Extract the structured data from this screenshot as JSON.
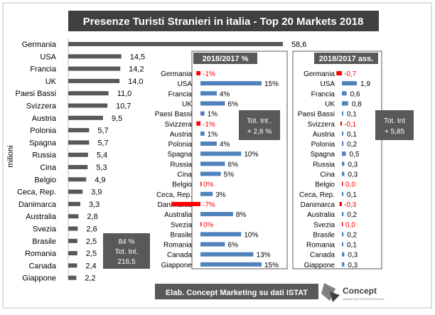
{
  "title": "Presenze Turisti Stranieri in italia -  Top 20 Markets 2018",
  "footer": "Elab. Concept Marketing su dati ISTAT",
  "logo": {
    "name": "Concept",
    "tagline": "MARKETING PROFESSIONALE"
  },
  "colors": {
    "bar_dark": "#595959",
    "bar_blue": "#4f81bd",
    "bar_red": "#ff0000",
    "dark_box": "#404040",
    "neg_text": "#ff0000"
  },
  "chart_data": [
    {
      "type": "bar",
      "orientation": "horizontal",
      "title": "Presenze 2018",
      "ylabel": "milioni",
      "categories": [
        "Germania",
        "USA",
        "Francia",
        "UK",
        "Paesi Bassi",
        "Svizzera",
        "Austria",
        "Polonia",
        "Spagna",
        "Russia",
        "Cina",
        "Belgio",
        "Ceca, Rep.",
        "Danimarca",
        "Australia",
        "Svezia",
        "Brasile",
        "Romania",
        "Canada",
        "Giappone"
      ],
      "values": [
        58.6,
        14.5,
        14.2,
        14.0,
        11.0,
        10.7,
        9.5,
        5.7,
        5.7,
        5.4,
        5.3,
        4.9,
        3.9,
        3.3,
        2.8,
        2.6,
        2.5,
        2.5,
        2.4,
        2.2
      ],
      "value_labels": [
        "58,6",
        "14,5",
        "14,2",
        "14,0",
        "11,0",
        "10,7",
        "9,5",
        "5,7",
        "5,7",
        "5,4",
        "5,3",
        "4,9",
        "3,9",
        "3,3",
        "2,8",
        "2,6",
        "2,5",
        "2,5",
        "2,4",
        "2,2"
      ],
      "xlim": [
        0,
        60
      ],
      "note": [
        "84 %",
        "Tot. Int.",
        "216,5"
      ]
    },
    {
      "type": "bar",
      "orientation": "horizontal",
      "title": "2018/2017 %",
      "categories": [
        "Germania",
        "USA",
        "Francia",
        "UK",
        "Paesi Bassi",
        "Svizzera",
        "Austria",
        "Polonia",
        "Spagna",
        "Russia",
        "Cina",
        "Belgio",
        "Ceca, Rep.",
        "Danimarca",
        "Australia",
        "Svezia",
        "Brasile",
        "Romania",
        "Canada",
        "Giappone"
      ],
      "values": [
        -1,
        15,
        4,
        6,
        1,
        -1,
        1,
        4,
        10,
        6,
        5,
        0,
        3,
        -7,
        8,
        0,
        10,
        6,
        13,
        15
      ],
      "value_labels": [
        "-1%",
        "15%",
        "4%",
        "6%",
        "1%",
        "-1%",
        "1%",
        "4%",
        "10%",
        "6%",
        "5%",
        "0%",
        "3%",
        "-7%",
        "8%",
        "0%",
        "10%",
        "6%",
        "13%",
        "15%"
      ],
      "xlim": [
        -7,
        15
      ],
      "note": [
        "Tot. Int .",
        "+ 2,8 %"
      ]
    },
    {
      "type": "bar",
      "orientation": "horizontal",
      "title": "2018/2017 ass.",
      "categories": [
        "Germania",
        "USA",
        "Francia",
        "UK",
        "Paesi Bassi",
        "Svizzera",
        "Austria",
        "Polonia",
        "Spagna",
        "Russia",
        "Cina",
        "Belgio",
        "Ceca, Rep.",
        "Danimarca",
        "Australia",
        "Svezia",
        "Brasile",
        "Romania",
        "Canada",
        "Giappone"
      ],
      "values": [
        -0.7,
        1.9,
        0.6,
        0.8,
        0.1,
        -0.1,
        0.1,
        0.2,
        0.5,
        0.3,
        0.3,
        0.0,
        0.1,
        -0.3,
        0.2,
        0.0,
        0.2,
        0.1,
        0.3,
        0.3
      ],
      "value_labels": [
        "-0,7",
        "1,9",
        "0,6",
        "0,8",
        "0,1",
        "-0,1",
        "0,1",
        "0,2",
        "0,5",
        "0,3",
        "0,3",
        "0,0",
        "0,1",
        "-0,3",
        "0,2",
        "0,0",
        "0,2",
        "0,1",
        "0,3",
        "0,3"
      ],
      "xlim": [
        -0.7,
        1.9
      ],
      "note": [
        "Tot. Int",
        "+ 5,85"
      ]
    }
  ]
}
